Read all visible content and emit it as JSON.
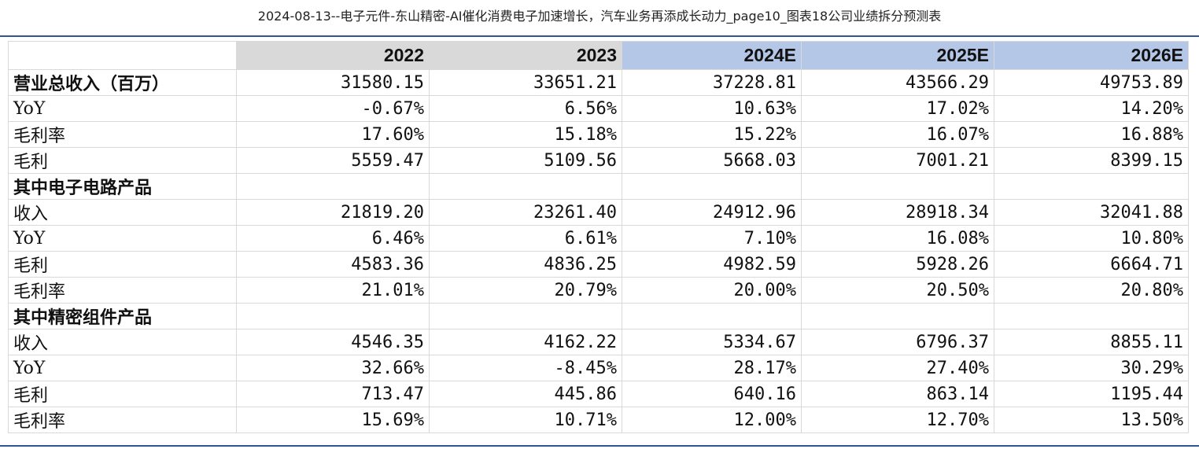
{
  "page_title": "2024-08-13--电子元件-东山精密-AI催化消费电子加速增长，汽车业务再添成长动力_page10_图表18公司业绩拆分预测表",
  "colors": {
    "accent_rule": "#2f5597",
    "actual_header_bg": "#d9d9d9",
    "estimate_header_bg": "#b4c7e7"
  },
  "chart_data": {
    "type": "table",
    "columns": [
      "",
      "2022",
      "2023",
      "2024E",
      "2025E",
      "2026E"
    ],
    "rows": [
      {
        "label": "营业总收入（百万）",
        "bold": true,
        "values": [
          "31580.15",
          "33651.21",
          "37228.81",
          "43566.29",
          "49753.89"
        ]
      },
      {
        "label": "YoY",
        "bold": false,
        "values": [
          "-0.67%",
          "6.56%",
          "10.63%",
          "17.02%",
          "14.20%"
        ]
      },
      {
        "label": "毛利率",
        "bold": false,
        "values": [
          "17.60%",
          "15.18%",
          "15.22%",
          "16.07%",
          "16.88%"
        ]
      },
      {
        "label": "毛利",
        "bold": false,
        "values": [
          "5559.47",
          "5109.56",
          "5668.03",
          "7001.21",
          "8399.15"
        ]
      },
      {
        "label": "其中电子电路产品",
        "bold": true,
        "values": [
          "",
          "",
          "",
          "",
          ""
        ]
      },
      {
        "label": "收入",
        "bold": false,
        "values": [
          "21819.20",
          "23261.40",
          "24912.96",
          "28918.34",
          "32041.88"
        ]
      },
      {
        "label": "YoY",
        "bold": false,
        "values": [
          "6.46%",
          "6.61%",
          "7.10%",
          "16.08%",
          "10.80%"
        ]
      },
      {
        "label": "毛利",
        "bold": false,
        "values": [
          "4583.36",
          "4836.25",
          "4982.59",
          "5928.26",
          "6664.71"
        ]
      },
      {
        "label": "毛利率",
        "bold": false,
        "values": [
          "21.01%",
          "20.79%",
          "20.00%",
          "20.50%",
          "20.80%"
        ]
      },
      {
        "label": "其中精密组件产品",
        "bold": true,
        "values": [
          "",
          "",
          "",
          "",
          ""
        ]
      },
      {
        "label": "收入",
        "bold": false,
        "values": [
          "4546.35",
          "4162.22",
          "5334.67",
          "6796.37",
          "8855.11"
        ]
      },
      {
        "label": "YoY",
        "bold": false,
        "values": [
          "32.66%",
          "-8.45%",
          "28.17%",
          "27.40%",
          "30.29%"
        ]
      },
      {
        "label": "毛利",
        "bold": false,
        "values": [
          "713.47",
          "445.86",
          "640.16",
          "863.14",
          "1195.44"
        ]
      },
      {
        "label": "毛利率",
        "bold": false,
        "values": [
          "15.69%",
          "10.71%",
          "12.00%",
          "12.70%",
          "13.50%"
        ]
      }
    ]
  }
}
